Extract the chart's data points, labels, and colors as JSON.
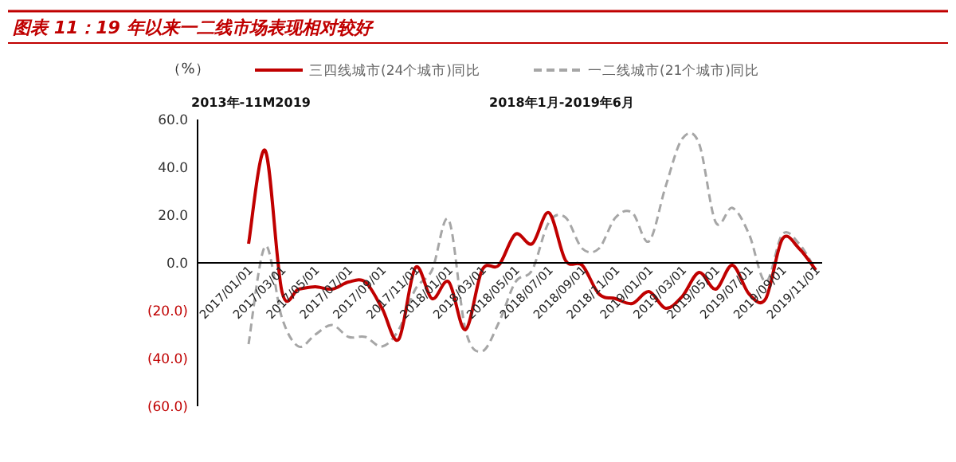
{
  "chart_data": {
    "type": "line",
    "title": "图表 11：19 年以来一二线市场表现相对较好",
    "ylabel": "（%）",
    "annotations": [
      "2013年-11M2019",
      "2018年1月-2019年6月"
    ],
    "categories": [
      "2017/01/01",
      null,
      "2017/03/01",
      null,
      "2017/05/01",
      null,
      "2017/07/01",
      null,
      "2017/09/01",
      null,
      "2017/11/01",
      null,
      "2018/01/01",
      null,
      "2018/03/01",
      null,
      "2018/05/01",
      null,
      "2018/07/01",
      null,
      "2018/09/01",
      null,
      "2018/11/01",
      null,
      "2019/01/01",
      null,
      "2019/03/01",
      null,
      "2019/05/01",
      null,
      "2019/07/01",
      null,
      "2019/09/01",
      null,
      "2019/11/01"
    ],
    "series": [
      {
        "name": "三四线城市(24个城市)同比",
        "color": "#c00000",
        "line_style": "solid",
        "values": [
          8,
          47,
          -12,
          -11,
          -10,
          -11,
          -8,
          -8,
          -19,
          -32,
          -2,
          -15,
          -8,
          -28,
          -3,
          -1,
          12,
          8,
          21,
          1,
          -1,
          -13,
          -15,
          -17,
          -12,
          -19,
          -14,
          -4,
          -11,
          -1,
          -13,
          -15,
          10,
          6,
          -3
        ]
      },
      {
        "name": "一二线城市(21个城市)同比",
        "color": "#a6a6a6",
        "line_style": "dashed",
        "values": [
          -34,
          7,
          -23,
          -35,
          -30,
          -26,
          -31,
          -31,
          -35,
          -28,
          -11,
          -3,
          18,
          -28,
          -37,
          -25,
          -8,
          -3,
          17,
          19,
          6,
          6,
          19,
          21,
          9,
          32,
          52,
          50,
          17,
          23,
          12,
          -8,
          12,
          8,
          -3
        ]
      }
    ],
    "ylim": [
      -60,
      60
    ],
    "yticks": [
      {
        "value": 60,
        "label": "60.0"
      },
      {
        "value": 40,
        "label": "40.0"
      },
      {
        "value": 20,
        "label": "20.0"
      },
      {
        "value": 0,
        "label": "0.0"
      },
      {
        "value": -20,
        "label": "(20.0)"
      },
      {
        "value": -40,
        "label": "(40.0)"
      },
      {
        "value": -60,
        "label": "(60.0)"
      }
    ],
    "grid": false,
    "legend": "top"
  }
}
